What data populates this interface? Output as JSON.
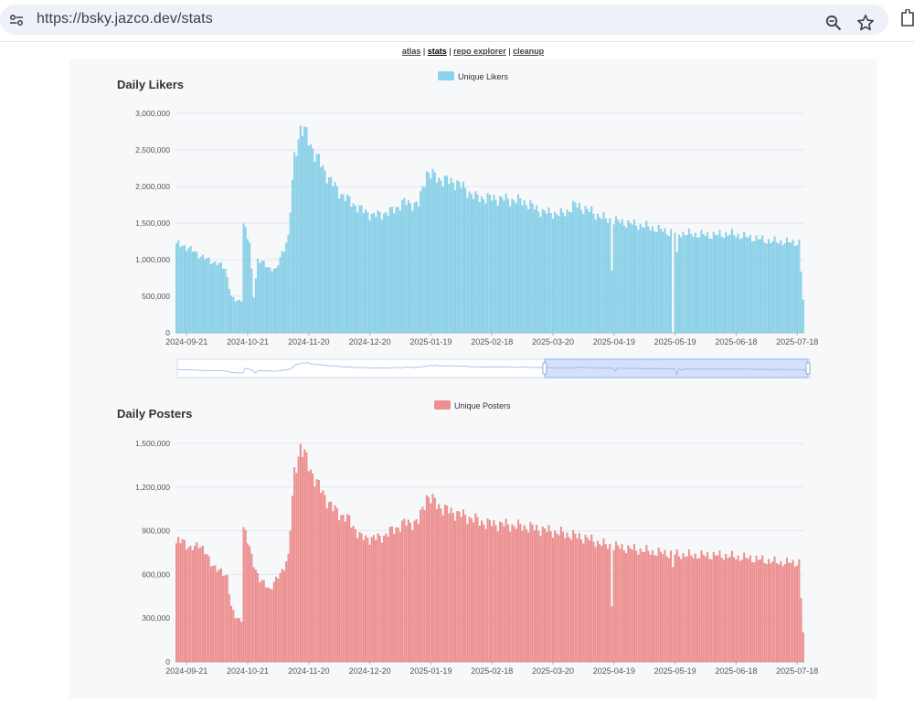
{
  "browser": {
    "url": "https://bsky.jazco.dev/stats",
    "icons": [
      "site-info-icon",
      "zoom-icon",
      "star-icon",
      "extensions-icon"
    ]
  },
  "nav": {
    "links": [
      {
        "label": "atlas",
        "active": false
      },
      {
        "label": "stats",
        "active": true
      },
      {
        "label": "repo explorer",
        "active": false
      },
      {
        "label": "cleanup",
        "active": false
      }
    ],
    "separator": "|"
  },
  "colors": {
    "likers": "#8ad3ea",
    "posters": "#f08f8f",
    "grid": "#e3e6ec",
    "axis_text": "#555555"
  },
  "chart_data": [
    {
      "type": "bar",
      "title": "Daily Likers",
      "series": [
        {
          "name": "Unique Likers"
        }
      ],
      "ylim": [
        0,
        3000000
      ],
      "yticks": [
        "0",
        "500,000",
        "1,000,000",
        "1,500,000",
        "2,000,000",
        "2,500,000",
        "3,000,000"
      ],
      "xticks": [
        "2024-09-21",
        "2024-10-21",
        "2024-11-20",
        "2024-12-20",
        "2025-01-19",
        "2025-02-18",
        "2025-03-20",
        "2025-04-19",
        "2025-05-19",
        "2025-06-18",
        "2025-07-18"
      ],
      "x_start": "2024-09-16",
      "x_end": "2025-07-21",
      "anchors": [
        [
          "2024-09-16",
          1200000
        ],
        [
          "2024-09-19",
          1200000
        ],
        [
          "2024-09-25",
          1100000
        ],
        [
          "2024-10-01",
          1000000
        ],
        [
          "2024-10-06",
          950000
        ],
        [
          "2024-10-10",
          880000
        ],
        [
          "2024-10-13",
          500000
        ],
        [
          "2024-10-15",
          430000
        ],
        [
          "2024-10-18",
          450000
        ],
        [
          "2024-10-19",
          1500000
        ],
        [
          "2024-10-22",
          1200000
        ],
        [
          "2024-10-24",
          500000
        ],
        [
          "2024-10-26",
          1000000
        ],
        [
          "2024-10-31",
          900000
        ],
        [
          "2024-11-04",
          850000
        ],
        [
          "2024-11-07",
          1100000
        ],
        [
          "2024-11-10",
          1300000
        ],
        [
          "2024-11-13",
          2400000
        ],
        [
          "2024-11-16",
          2800000
        ],
        [
          "2024-11-19",
          2700000
        ],
        [
          "2024-11-23",
          2450000
        ],
        [
          "2024-11-28",
          2200000
        ],
        [
          "2024-12-04",
          1950000
        ],
        [
          "2024-12-10",
          1800000
        ],
        [
          "2024-12-16",
          1680000
        ],
        [
          "2024-12-22",
          1600000
        ],
        [
          "2024-12-30",
          1650000
        ],
        [
          "2025-01-06",
          1780000
        ],
        [
          "2025-01-13",
          1750000
        ],
        [
          "2025-01-17",
          2200000
        ],
        [
          "2025-01-23",
          2100000
        ],
        [
          "2025-02-01",
          2050000
        ],
        [
          "2025-02-10",
          1850000
        ],
        [
          "2025-02-22",
          1830000
        ],
        [
          "2025-03-05",
          1800000
        ],
        [
          "2025-03-15",
          1650000
        ],
        [
          "2025-03-25",
          1620000
        ],
        [
          "2025-03-31",
          1750000
        ],
        [
          "2025-04-08",
          1650000
        ],
        [
          "2025-04-15",
          1550000
        ],
        [
          "2025-04-25",
          1500000
        ],
        [
          "2025-05-05",
          1450000
        ],
        [
          "2025-05-15",
          1380000
        ],
        [
          "2025-05-25",
          1350000
        ],
        [
          "2025-06-05",
          1330000
        ],
        [
          "2025-06-15",
          1350000
        ],
        [
          "2025-06-25",
          1300000
        ],
        [
          "2025-07-05",
          1250000
        ],
        [
          "2025-07-19",
          1230000
        ],
        [
          "2025-07-21",
          450000
        ]
      ],
      "dips": [
        [
          "2025-04-18",
          850000
        ],
        [
          "2025-05-18",
          0
        ],
        [
          "2025-05-20",
          1100000
        ]
      ],
      "has_zoom_slider": true
    },
    {
      "type": "bar",
      "title": "Daily Posters",
      "series": [
        {
          "name": "Unique Posters"
        }
      ],
      "ylim": [
        0,
        1500000
      ],
      "yticks": [
        "0",
        "300,000",
        "600,000",
        "900,000",
        "1,200,000",
        "1,500,000"
      ],
      "xticks": [
        "2024-09-21",
        "2024-10-21",
        "2024-11-20",
        "2024-12-20",
        "2025-01-19",
        "2025-02-18",
        "2025-03-20",
        "2025-04-19",
        "2025-05-19",
        "2025-06-18",
        "2025-07-18"
      ],
      "x_start": "2024-09-16",
      "x_end": "2025-07-21",
      "anchors": [
        [
          "2024-09-16",
          800000
        ],
        [
          "2024-09-19",
          850000
        ],
        [
          "2024-09-23",
          760000
        ],
        [
          "2024-09-27",
          820000
        ],
        [
          "2024-10-02",
          700000
        ],
        [
          "2024-10-07",
          620000
        ],
        [
          "2024-10-11",
          590000
        ],
        [
          "2024-10-13",
          380000
        ],
        [
          "2024-10-15",
          300000
        ],
        [
          "2024-10-18",
          290000
        ],
        [
          "2024-10-19",
          930000
        ],
        [
          "2024-10-23",
          720000
        ],
        [
          "2024-10-27",
          560000
        ],
        [
          "2024-11-01",
          500000
        ],
        [
          "2024-11-06",
          600000
        ],
        [
          "2024-11-10",
          720000
        ],
        [
          "2024-11-13",
          1300000
        ],
        [
          "2024-11-16",
          1480000
        ],
        [
          "2024-11-20",
          1350000
        ],
        [
          "2024-11-25",
          1200000
        ],
        [
          "2024-12-02",
          1050000
        ],
        [
          "2024-12-10",
          970000
        ],
        [
          "2024-12-16",
          850000
        ],
        [
          "2024-12-25",
          850000
        ],
        [
          "2025-01-06",
          950000
        ],
        [
          "2025-01-13",
          960000
        ],
        [
          "2025-01-17",
          1140000
        ],
        [
          "2025-01-25",
          1050000
        ],
        [
          "2025-02-05",
          1000000
        ],
        [
          "2025-02-15",
          950000
        ],
        [
          "2025-02-25",
          940000
        ],
        [
          "2025-03-10",
          920000
        ],
        [
          "2025-03-25",
          880000
        ],
        [
          "2025-04-05",
          850000
        ],
        [
          "2025-04-15",
          800000
        ],
        [
          "2025-04-25",
          780000
        ],
        [
          "2025-05-10",
          750000
        ],
        [
          "2025-05-25",
          730000
        ],
        [
          "2025-06-10",
          730000
        ],
        [
          "2025-06-25",
          710000
        ],
        [
          "2025-07-10",
          680000
        ],
        [
          "2025-07-19",
          680000
        ],
        [
          "2025-07-21",
          200000
        ]
      ],
      "dips": [
        [
          "2025-04-18",
          380000
        ],
        [
          "2025-05-18",
          650000
        ]
      ],
      "has_zoom_slider": false
    }
  ]
}
